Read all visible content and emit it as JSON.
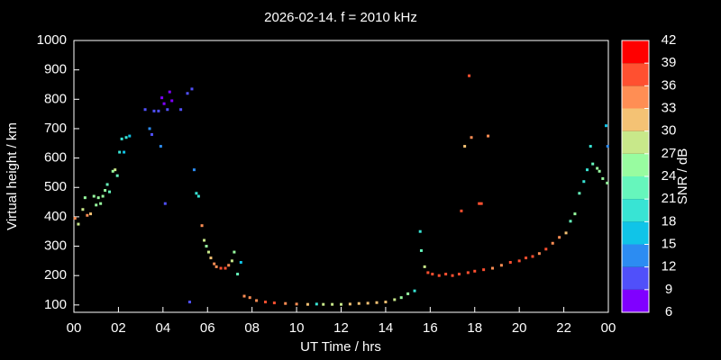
{
  "chart_data": {
    "type": "scatter",
    "title": "2026-02-14. f = 2010 kHz",
    "x_label": "UT Time / hrs",
    "y_label": "Virtual height / km",
    "colorbar_label": "SNR / dB",
    "xlim": [
      0,
      24
    ],
    "xticks": [
      {
        "value": 0,
        "label": "00"
      },
      {
        "value": 2,
        "label": "02"
      },
      {
        "value": 4,
        "label": "04"
      },
      {
        "value": 6,
        "label": "06"
      },
      {
        "value": 8,
        "label": "08"
      },
      10,
      12,
      14,
      16,
      18,
      20,
      22,
      {
        "value": 24,
        "label": "00"
      }
    ],
    "ylim": [
      75,
      1000
    ],
    "yticks": [
      100,
      200,
      300,
      400,
      500,
      600,
      700,
      800,
      900,
      1000
    ],
    "clim": [
      6,
      42
    ],
    "cticks": [
      6,
      9,
      12,
      15,
      18,
      21,
      24,
      27,
      30,
      33,
      36,
      39,
      42
    ],
    "colors": [
      "#8000ff",
      "#5050fa",
      "#2c8cf2",
      "#10c4e8",
      "#38e4d4",
      "#66f6bc",
      "#98fca0",
      "#c8e88a",
      "#f4c274",
      "#ff8e54",
      "#ff5030",
      "#ff0000"
    ],
    "x": [
      0.05,
      0.2,
      0.4,
      0.5,
      0.6,
      0.75,
      0.9,
      1.0,
      1.1,
      1.2,
      1.3,
      1.4,
      1.5,
      1.6,
      1.75,
      1.85,
      1.95,
      2.05,
      2.15,
      2.25,
      2.35,
      2.5,
      3.2,
      3.4,
      3.5,
      3.6,
      3.8,
      3.9,
      3.95,
      4.05,
      4.1,
      4.2,
      4.3,
      4.4,
      4.8,
      5.1,
      5.3,
      5.2,
      5.4,
      5.5,
      5.6,
      5.75,
      5.85,
      5.95,
      6.05,
      6.15,
      6.3,
      6.4,
      6.6,
      6.8,
      6.95,
      7.1,
      7.2,
      7.35,
      7.5,
      7.65,
      7.9,
      8.2,
      8.6,
      9.0,
      9.5,
      10.0,
      10.5,
      10.9,
      11.2,
      11.6,
      12.0,
      12.4,
      12.8,
      13.2,
      13.6,
      14.0,
      14.4,
      14.7,
      15.0,
      15.3,
      15.55,
      15.6,
      15.75,
      15.9,
      16.1,
      16.4,
      16.7,
      17.0,
      17.3,
      17.4,
      17.55,
      17.75,
      17.85,
      18.2,
      18.3,
      18.6,
      17.7,
      18.0,
      18.4,
      18.8,
      19.2,
      19.6,
      20.0,
      20.3,
      20.6,
      20.9,
      21.2,
      21.5,
      21.8,
      22.1,
      22.3,
      22.5,
      22.7,
      22.9,
      23.05,
      23.2,
      23.3,
      23.5,
      23.6,
      23.75,
      23.9,
      23.95,
      23.97
    ],
    "values": [
      395,
      375,
      425,
      465,
      405,
      410,
      470,
      440,
      465,
      445,
      470,
      490,
      510,
      485,
      555,
      560,
      540,
      620,
      665,
      620,
      670,
      675,
      765,
      700,
      680,
      760,
      760,
      640,
      805,
      785,
      445,
      765,
      825,
      795,
      765,
      820,
      835,
      110,
      560,
      480,
      470,
      370,
      320,
      300,
      280,
      260,
      240,
      230,
      225,
      225,
      235,
      250,
      280,
      205,
      245,
      130,
      125,
      115,
      110,
      107,
      105,
      103,
      102,
      103,
      102,
      102,
      102,
      103,
      105,
      106,
      108,
      110,
      118,
      125,
      138,
      148,
      350,
      285,
      230,
      210,
      205,
      200,
      205,
      200,
      205,
      420,
      640,
      880,
      670,
      445,
      445,
      675,
      210,
      215,
      220,
      225,
      235,
      245,
      250,
      260,
      265,
      275,
      290,
      310,
      330,
      345,
      385,
      410,
      480,
      520,
      560,
      640,
      580,
      565,
      555,
      530,
      710,
      515,
      640
    ],
    "snr": [
      34,
      28,
      27,
      24,
      33,
      30,
      25,
      24,
      26,
      24,
      24,
      25,
      23,
      22,
      25,
      27,
      22,
      18,
      18,
      16,
      18,
      15,
      10,
      12,
      10,
      10,
      10,
      12,
      8,
      8,
      11,
      10,
      8,
      8,
      9,
      9,
      9,
      10,
      12,
      18,
      20,
      34,
      27,
      25,
      27,
      30,
      33,
      35,
      36,
      36,
      34,
      28,
      26,
      22,
      16,
      34,
      34,
      35,
      36,
      36,
      35,
      34,
      31,
      20,
      27,
      27,
      28,
      30,
      31,
      30,
      32,
      31,
      28,
      26,
      24,
      20,
      20,
      22,
      29,
      37,
      37,
      38,
      36,
      36,
      37,
      37,
      32,
      36,
      35,
      38,
      38,
      35,
      36,
      37,
      36,
      33,
      35,
      37,
      37,
      36,
      36,
      35,
      36,
      35,
      33,
      31,
      22,
      24,
      22,
      18,
      20,
      18,
      22,
      24,
      24,
      25,
      15,
      26,
      14
    ]
  }
}
